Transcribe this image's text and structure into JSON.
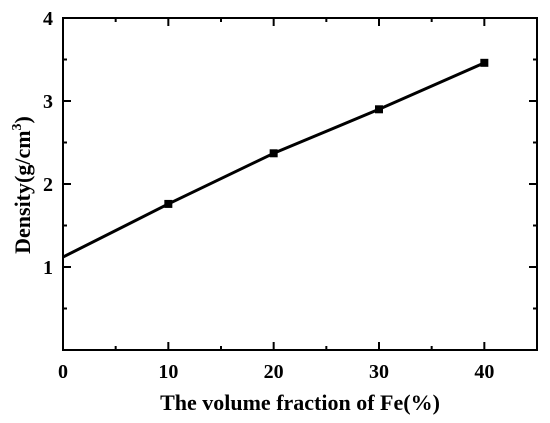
{
  "chart_data": {
    "type": "line",
    "title": "",
    "xlabel": "The volume fraction of Fe(%)",
    "ylabel": {
      "main": "Density(g/cm",
      "superscript": "3",
      "close": ")"
    },
    "xlim": [
      0,
      45
    ],
    "ylim": [
      0,
      4
    ],
    "xticks": [
      0,
      10,
      20,
      30,
      40
    ],
    "yticks": [
      1,
      2,
      3,
      4
    ],
    "x_minor_ticks": [
      5,
      15,
      25,
      35,
      45
    ],
    "y_minor_ticks": [
      0.5,
      1.5,
      2.5,
      3.5
    ],
    "grid": false,
    "line_color": "#000000",
    "series": [
      {
        "x": [
          0,
          10,
          20,
          30,
          40
        ],
        "y": [
          1.12,
          1.76,
          2.37,
          2.9,
          3.46
        ],
        "markers": [
          false,
          true,
          true,
          true,
          true
        ]
      }
    ]
  }
}
